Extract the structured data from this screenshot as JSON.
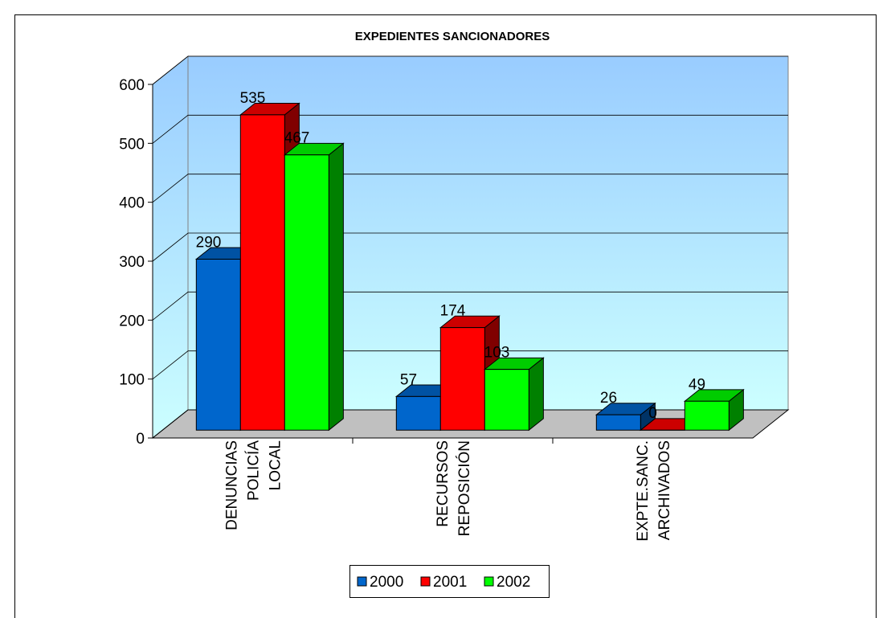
{
  "chart_data": {
    "type": "bar3d",
    "title": "EXPEDIENTES SANCIONADORES",
    "categories": [
      "DENUNCIAS POLICÍA LOCAL",
      "RECURSOS REPOSICIÓN",
      "EXPTE.SANC. ARCHIVADOS"
    ],
    "series": [
      {
        "name": "2000",
        "color": "#0066cc",
        "values": [
          290,
          57,
          26
        ]
      },
      {
        "name": "2001",
        "color": "#ff0000",
        "values": [
          535,
          174,
          0
        ]
      },
      {
        "name": "2002",
        "color": "#00ff00",
        "values": [
          467,
          103,
          49
        ]
      }
    ],
    "ylim": [
      0,
      600
    ],
    "yticks": [
      0,
      100,
      200,
      300,
      400,
      500,
      600
    ],
    "grid": true,
    "legend": "bottom"
  }
}
